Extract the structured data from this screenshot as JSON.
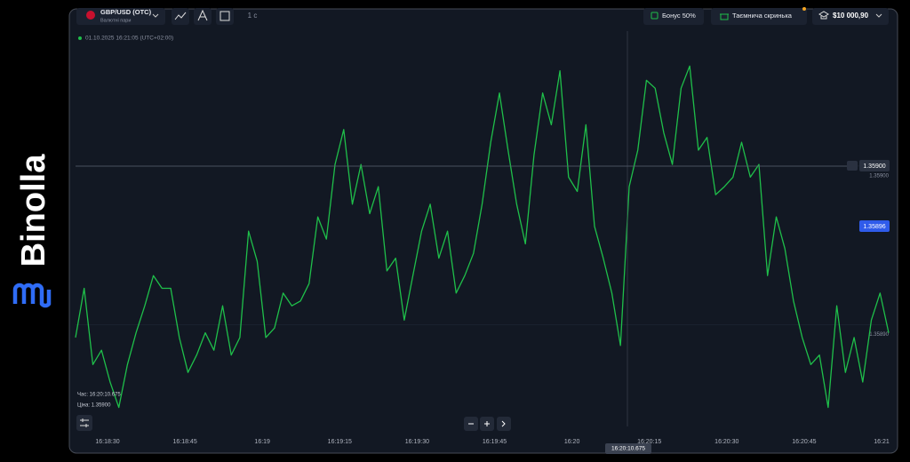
{
  "brand": "Binolla",
  "header": {
    "asset": "GBP/USD (OTC)",
    "asset_type": "Валютні пари",
    "timeframe": "1 с",
    "bonus": "Бонус 50%",
    "mystery_box": "Таємнича скринька",
    "balance": "$10 000,90"
  },
  "overlay": {
    "datetime": "01.10.2025  16:21:05 (UTC+02:00)",
    "crosshair_time": "16:20:10.675",
    "tooltip_time": "Час: 16:20:10.675",
    "tooltip_price": "Ціна: 1.35900",
    "current_price": "1.35896",
    "marker_price": "1.35900"
  },
  "chart_data": {
    "type": "line",
    "color": "#1fbf4a",
    "values": [
      1.358892,
      1.358923,
      1.358875,
      1.358884,
      1.358864,
      1.358848,
      1.358875,
      1.358895,
      1.358912,
      1.358931,
      1.358923,
      1.358923,
      1.358892,
      1.35887,
      1.358881,
      1.358895,
      1.358884,
      1.358912,
      1.358881,
      1.358892,
      1.358959,
      1.35894,
      1.358892,
      1.358898,
      1.35892,
      1.358912,
      1.358915,
      1.358926,
      1.358968,
      1.358954,
      1.359001,
      1.359023,
      1.358976,
      1.359001,
      1.35897,
      1.358987,
      1.358934,
      1.358942,
      1.358903,
      1.358931,
      1.358959,
      1.358976,
      1.358942,
      1.358959,
      1.35892,
      1.358931,
      1.358945,
      1.358976,
      1.359015,
      1.359046,
      1.35901,
      1.358976,
      1.358951,
      1.359007,
      1.359046,
      1.359026,
      1.35906,
      1.358993,
      1.358984,
      1.359026,
      1.358962,
      1.358942,
      1.35892,
      1.358887,
      1.358987,
      1.35901,
      1.359054,
      1.359049,
      1.359021,
      1.359001,
      1.359049,
      1.359063,
      1.35901,
      1.359018,
      1.358982,
      1.358987,
      1.358993,
      1.359015,
      1.358993,
      1.359001,
      1.358931,
      1.358968,
      1.358948,
      1.358915,
      1.358892,
      1.358875,
      1.358881,
      1.358848,
      1.358912,
      1.35887,
      1.358892,
      1.358864,
      1.358903,
      1.35892,
      1.358895
    ],
    "ylim": [
      1.358836,
      1.359085
    ],
    "yticks": [
      {
        "value": 1.359,
        "label": "1.35900"
      },
      {
        "value": 1.3589,
        "label": "1.35890"
      }
    ],
    "xticks": [
      "16:18:30",
      "16:18:45",
      "16:19",
      "16:19:15",
      "16:19:30",
      "16:19:45",
      "16:20",
      "16:20:15",
      "16:20:30",
      "16:20:45",
      "16:21"
    ]
  }
}
